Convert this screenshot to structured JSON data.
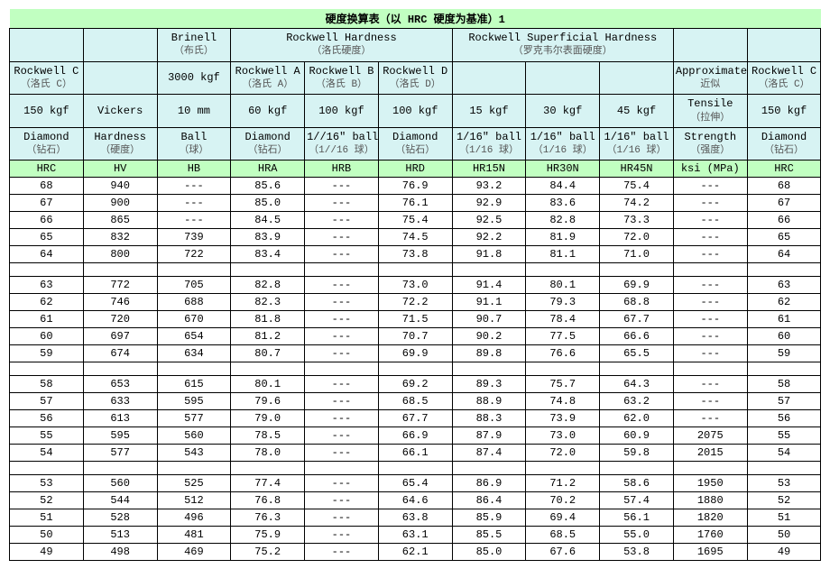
{
  "title": "硬度换算表（以 HRC 硬度为基准）1",
  "blank": "",
  "h1": {
    "brinell_en": "Brinell",
    "brinell_zh": "（布氏）",
    "rockwell_en": "Rockwell Hardness",
    "rockwell_zh": "（洛氏硬度）",
    "super_en": "Rockwell Superficial Hardness",
    "super_zh": "（罗克韦尔表面硬度）"
  },
  "h2": {
    "rc_en": "Rockwell C",
    "rc_zh": "（洛氏 C）",
    "kgf3000": "3000 kgf",
    "ra_en": "Rockwell A",
    "ra_zh": "（洛氏 A）",
    "rb_en": "Rockwell B",
    "rb_zh": "（洛氏 B）",
    "rd_en": "Rockwell D",
    "rd_zh": "（洛氏 D）",
    "approx_en": "Approximate",
    "approx_zh": "近似"
  },
  "h3": {
    "k150": "150 kgf",
    "vickers": "Vickers",
    "mm10": "10 mm",
    "k60": "60 kgf",
    "k100a": "100 kgf",
    "k100b": "100 kgf",
    "k15": "15 kgf",
    "k30": "30 kgf",
    "k45": "45 kgf",
    "tensile_en": "Tensile",
    "tensile_zh": "（拉伸）"
  },
  "h4": {
    "diamond_en": "Diamond",
    "diamond_zh": "（钻石）",
    "hardness_en": "Hardness",
    "hardness_zh": "（硬度）",
    "ball_en": "Ball",
    "ball_zh": "（球）",
    "ball116_en": "1//16\" ball",
    "ball116_zh": "（1//16 球）",
    "b116_en": "1/16\" ball",
    "b116_zh": "（1/16 球）",
    "strength_en": "Strength",
    "strength_zh": "（强度）"
  },
  "h5": {
    "hrc": "HRC",
    "hv": "HV",
    "hb": "HB",
    "hra": "HRA",
    "hrb": "HRB",
    "hrd": "HRD",
    "hr15n": "HR15N",
    "hr30n": "HR30N",
    "hr45n": "HR45N",
    "ksi": "ksi (MPa)"
  },
  "colwidths_pct": [
    7.69,
    7.69,
    7.69,
    7.69,
    7.69,
    7.69,
    7.69,
    7.69,
    7.69,
    7.69,
    7.69,
    7.69,
    7.69
  ],
  "groups": [
    {
      "rows": [
        [
          "68",
          "940",
          "---",
          "85.6",
          "---",
          "76.9",
          "93.2",
          "84.4",
          "75.4",
          "---",
          "68"
        ],
        [
          "67",
          "900",
          "---",
          "85.0",
          "---",
          "76.1",
          "92.9",
          "83.6",
          "74.2",
          "---",
          "67"
        ],
        [
          "66",
          "865",
          "---",
          "84.5",
          "---",
          "75.4",
          "92.5",
          "82.8",
          "73.3",
          "---",
          "66"
        ],
        [
          "65",
          "832",
          "739",
          "83.9",
          "---",
          "74.5",
          "92.2",
          "81.9",
          "72.0",
          "---",
          "65"
        ],
        [
          "64",
          "800",
          "722",
          "83.4",
          "---",
          "73.8",
          "91.8",
          "81.1",
          "71.0",
          "---",
          "64"
        ]
      ]
    },
    {
      "rows": [
        [
          "63",
          "772",
          "705",
          "82.8",
          "---",
          "73.0",
          "91.4",
          "80.1",
          "69.9",
          "---",
          "63"
        ],
        [
          "62",
          "746",
          "688",
          "82.3",
          "---",
          "72.2",
          "91.1",
          "79.3",
          "68.8",
          "---",
          "62"
        ],
        [
          "61",
          "720",
          "670",
          "81.8",
          "---",
          "71.5",
          "90.7",
          "78.4",
          "67.7",
          "---",
          "61"
        ],
        [
          "60",
          "697",
          "654",
          "81.2",
          "---",
          "70.7",
          "90.2",
          "77.5",
          "66.6",
          "---",
          "60"
        ],
        [
          "59",
          "674",
          "634",
          "80.7",
          "---",
          "69.9",
          "89.8",
          "76.6",
          "65.5",
          "---",
          "59"
        ]
      ]
    },
    {
      "rows": [
        [
          "58",
          "653",
          "615",
          "80.1",
          "---",
          "69.2",
          "89.3",
          "75.7",
          "64.3",
          "---",
          "58"
        ],
        [
          "57",
          "633",
          "595",
          "79.6",
          "---",
          "68.5",
          "88.9",
          "74.8",
          "63.2",
          "---",
          "57"
        ],
        [
          "56",
          "613",
          "577",
          "79.0",
          "---",
          "67.7",
          "88.3",
          "73.9",
          "62.0",
          "---",
          "56"
        ],
        [
          "55",
          "595",
          "560",
          "78.5",
          "---",
          "66.9",
          "87.9",
          "73.0",
          "60.9",
          "2075",
          "55"
        ],
        [
          "54",
          "577",
          "543",
          "78.0",
          "---",
          "66.1",
          "87.4",
          "72.0",
          "59.8",
          "2015",
          "54"
        ]
      ]
    },
    {
      "rows": [
        [
          "53",
          "560",
          "525",
          "77.4",
          "---",
          "65.4",
          "86.9",
          "71.2",
          "58.6",
          "1950",
          "53"
        ],
        [
          "52",
          "544",
          "512",
          "76.8",
          "---",
          "64.6",
          "86.4",
          "70.2",
          "57.4",
          "1880",
          "52"
        ],
        [
          "51",
          "528",
          "496",
          "76.3",
          "---",
          "63.8",
          "85.9",
          "69.4",
          "56.1",
          "1820",
          "51"
        ],
        [
          "50",
          "513",
          "481",
          "75.9",
          "---",
          "63.1",
          "85.5",
          "68.5",
          "55.0",
          "1760",
          "50"
        ],
        [
          "49",
          "498",
          "469",
          "75.2",
          "---",
          "62.1",
          "85.0",
          "67.6",
          "53.8",
          "1695",
          "49"
        ]
      ]
    }
  ],
  "style": {
    "title_bg": "#c1ffc1",
    "header_bg": "#d7f3f3",
    "green_bg": "#c1ffc1",
    "border": "#000000"
  }
}
